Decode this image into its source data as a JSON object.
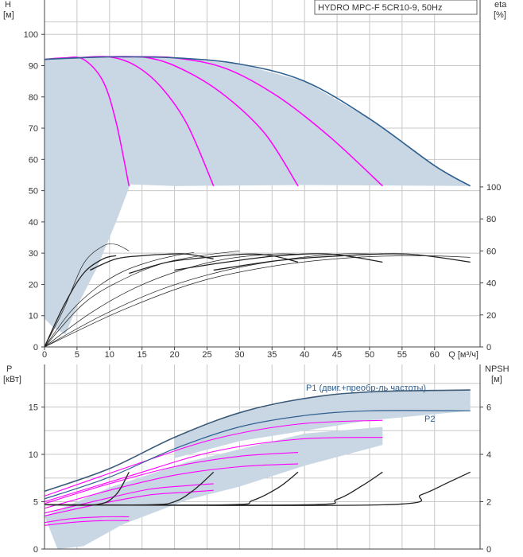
{
  "colors": {
    "shade": "#c9d6e3",
    "max_curve": "#2e5f8f",
    "speed_curve": "#ff00ff",
    "eff_curve": "#222222",
    "grid": "#c8c8c8"
  },
  "chart_data": [
    {
      "type": "line",
      "title": "HYDRO MPC-F 5CR10-9, 50Hz",
      "xlabel": "Q [м³/ч]",
      "ylabel": "H\n[м]",
      "y2label": "eta\n[%]",
      "x_ticks": [
        "0",
        "5",
        "10",
        "15",
        "20",
        "25",
        "30",
        "35",
        "40",
        "45",
        "50",
        "55",
        "60"
      ],
      "y_ticks": [
        "0",
        "10",
        "20",
        "30",
        "40",
        "50",
        "60",
        "70",
        "80",
        "90",
        "100"
      ],
      "y2_ticks": [
        "0",
        "20",
        "40",
        "60",
        "80",
        "100"
      ],
      "xlim": [
        0,
        67
      ],
      "ylim": [
        0,
        111
      ],
      "y2lim": [
        0,
        100
      ],
      "y2_offset": 51.2,
      "grid": true,
      "head_max_curve": [
        [
          0,
          92
        ],
        [
          10,
          92.8
        ],
        [
          20,
          92.5
        ],
        [
          30,
          90.5
        ],
        [
          40,
          85
        ],
        [
          50,
          73
        ],
        [
          60,
          58
        ],
        [
          65.5,
          51.5
        ]
      ],
      "head_speed_curves": [
        [
          [
            0,
            92
          ],
          [
            3,
            92.5
          ],
          [
            6,
            92
          ],
          [
            9,
            85
          ],
          [
            11,
            72
          ],
          [
            13,
            51.5
          ]
        ],
        [
          [
            5,
            92.5
          ],
          [
            10,
            92.8
          ],
          [
            14,
            90
          ],
          [
            18,
            83
          ],
          [
            22,
            71
          ],
          [
            26,
            51.5
          ]
        ],
        [
          [
            8,
            92.8
          ],
          [
            16,
            92.5
          ],
          [
            22,
            88
          ],
          [
            28,
            80
          ],
          [
            34,
            68
          ],
          [
            39,
            51.5
          ]
        ],
        [
          [
            12,
            92.8
          ],
          [
            20,
            92.5
          ],
          [
            28,
            89
          ],
          [
            36,
            80
          ],
          [
            44,
            67
          ],
          [
            52,
            51.5
          ]
        ]
      ],
      "efficiency_curves": [
        [
          [
            0,
            0
          ],
          [
            3,
            24
          ],
          [
            6,
            52
          ],
          [
            9,
            63
          ],
          [
            11,
            64
          ],
          [
            13,
            60
          ]
        ],
        [
          [
            0,
            0
          ],
          [
            4,
            22
          ],
          [
            8,
            37
          ],
          [
            12,
            47
          ],
          [
            16,
            53
          ],
          [
            20,
            57
          ],
          [
            23,
            59
          ]
        ],
        [
          [
            0,
            0
          ],
          [
            6,
            27
          ],
          [
            12,
            42
          ],
          [
            18,
            52
          ],
          [
            24,
            57
          ],
          [
            30,
            60
          ]
        ],
        [
          [
            0,
            0
          ],
          [
            7,
            21
          ],
          [
            14,
            37
          ],
          [
            21,
            48
          ],
          [
            28,
            55
          ],
          [
            35,
            58
          ],
          [
            39,
            58
          ]
        ],
        [
          [
            0,
            0
          ],
          [
            9,
            20
          ],
          [
            18,
            36
          ],
          [
            27,
            47
          ],
          [
            36,
            54
          ],
          [
            45,
            58
          ],
          [
            52,
            58
          ]
        ],
        [
          [
            0,
            0
          ],
          [
            12,
            23
          ],
          [
            24,
            41
          ],
          [
            36,
            51
          ],
          [
            48,
            56
          ],
          [
            58,
            57
          ],
          [
            65.5,
            56
          ]
        ],
        [
          [
            0,
            0
          ],
          [
            3,
            26
          ],
          [
            6,
            46
          ],
          [
            9,
            55
          ],
          [
            11,
            57
          ]
        ],
        [
          [
            7,
            48
          ],
          [
            11,
            55
          ],
          [
            15,
            57
          ],
          [
            19,
            58
          ],
          [
            22,
            58
          ],
          [
            26,
            55
          ]
        ],
        [
          [
            13,
            46
          ],
          [
            19,
            53
          ],
          [
            25,
            56
          ],
          [
            31,
            58
          ],
          [
            35,
            57
          ],
          [
            39,
            53
          ]
        ],
        [
          [
            20,
            48
          ],
          [
            28,
            53
          ],
          [
            36,
            57
          ],
          [
            44,
            58
          ],
          [
            52,
            53
          ]
        ],
        [
          [
            26,
            48
          ],
          [
            36,
            54
          ],
          [
            46,
            57
          ],
          [
            56,
            58
          ],
          [
            65.5,
            53
          ]
        ]
      ]
    },
    {
      "type": "line",
      "title": "",
      "xlabel": "",
      "ylabel": "P\n[кВт]",
      "y2label": "NPSH\n[м]",
      "y_ticks": [
        "0",
        "5",
        "10",
        "15"
      ],
      "y2_ticks": [
        "0",
        "2",
        "4",
        "6"
      ],
      "ylim": [
        0,
        19.5
      ],
      "y2lim": [
        0,
        7.8
      ],
      "grid": true,
      "series_labels": [
        "P1 (двиг.+преобр-ль частоты)",
        "P2"
      ],
      "p1_max_curve": [
        [
          0,
          6.1
        ],
        [
          10,
          8.5
        ],
        [
          20,
          11.8
        ],
        [
          30,
          14.4
        ],
        [
          40,
          15.9
        ],
        [
          50,
          16.6
        ],
        [
          65.5,
          16.8
        ]
      ],
      "p2_max_curve": [
        [
          0,
          5.3
        ],
        [
          10,
          7.6
        ],
        [
          20,
          10.6
        ],
        [
          30,
          12.9
        ],
        [
          40,
          14.1
        ],
        [
          50,
          14.6
        ],
        [
          65.5,
          14.6
        ]
      ],
      "p_speed_curves": [
        [
          [
            0,
            2.8
          ],
          [
            4,
            3.2
          ],
          [
            9,
            3.4
          ],
          [
            13,
            3.4
          ]
        ],
        [
          [
            0,
            2.5
          ],
          [
            4,
            2.8
          ],
          [
            9,
            3.0
          ],
          [
            13,
            3.0
          ]
        ],
        [
          [
            0,
            3.8
          ],
          [
            8,
            5.1
          ],
          [
            16,
            6.3
          ],
          [
            22,
            6.7
          ],
          [
            26,
            6.9
          ]
        ],
        [
          [
            0,
            3.5
          ],
          [
            8,
            4.7
          ],
          [
            16,
            5.7
          ],
          [
            22,
            6.0
          ],
          [
            26,
            6.2
          ]
        ],
        [
          [
            0,
            4.8
          ],
          [
            10,
            6.9
          ],
          [
            20,
            8.7
          ],
          [
            30,
            9.8
          ],
          [
            39,
            10.2
          ]
        ],
        [
          [
            0,
            4.3
          ],
          [
            10,
            6.2
          ],
          [
            20,
            7.8
          ],
          [
            30,
            8.7
          ],
          [
            39,
            9.0
          ]
        ],
        [
          [
            0,
            5.6
          ],
          [
            13,
            8.7
          ],
          [
            26,
            11.6
          ],
          [
            39,
            13.2
          ],
          [
            52,
            13.6
          ]
        ],
        [
          [
            0,
            5.0
          ],
          [
            13,
            7.7
          ],
          [
            26,
            10.3
          ],
          [
            39,
            11.6
          ],
          [
            52,
            11.8
          ]
        ]
      ],
      "npsh_curves": [
        [
          [
            0,
            1.87
          ],
          [
            8,
            1.88
          ],
          [
            11,
            2.3
          ],
          [
            13,
            3.25
          ]
        ],
        [
          [
            0,
            1.87
          ],
          [
            16,
            1.87
          ],
          [
            20,
            2.0
          ],
          [
            23,
            2.5
          ],
          [
            26,
            3.25
          ]
        ],
        [
          [
            0,
            1.87
          ],
          [
            28,
            1.87
          ],
          [
            32,
            2.05
          ],
          [
            36,
            2.6
          ],
          [
            39,
            3.25
          ]
        ],
        [
          [
            0,
            1.87
          ],
          [
            40,
            1.87
          ],
          [
            45,
            2.1
          ],
          [
            49,
            2.7
          ],
          [
            52,
            3.25
          ]
        ],
        [
          [
            0,
            1.87
          ],
          [
            52,
            1.87
          ],
          [
            58,
            2.3
          ],
          [
            62,
            2.8
          ],
          [
            65.5,
            3.25
          ]
        ]
      ]
    }
  ]
}
